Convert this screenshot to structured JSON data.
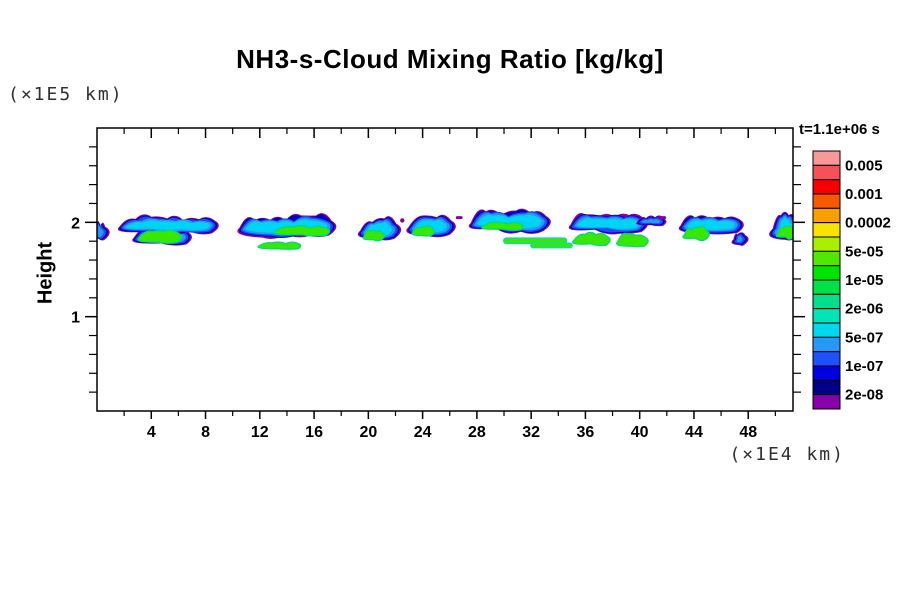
{
  "chart_data": {
    "type": "heatmap",
    "title": "NH3-s-Cloud Mixing Ratio [kg/kg]",
    "time_label": "t=1.1e+06 s",
    "x_axis": {
      "unit_label": "(×1E4 km)",
      "range": [
        0,
        51.3
      ],
      "major_ticks": [
        4,
        8,
        12,
        16,
        20,
        24,
        28,
        32,
        36,
        40,
        44,
        48
      ],
      "minor_tick_step": 2
    },
    "y_axis": {
      "label": "Height",
      "unit_label": "(×1E5 km)",
      "range": [
        0,
        3
      ],
      "major_ticks": [
        1,
        2
      ],
      "minor_tick_step": 0.2
    },
    "legend": {
      "labels": [
        "0.005",
        "0.001",
        "0.0002",
        "5e-05",
        "1e-05",
        "2e-06",
        "5e-07",
        "1e-07",
        "2e-08"
      ],
      "colors": [
        "#F89898",
        "#F85058",
        "#F80000",
        "#F85800",
        "#F8A000",
        "#F8E400",
        "#A8F000",
        "#50E800",
        "#00E400",
        "#00E048",
        "#00E08C",
        "#00E4B8",
        "#00D8F0",
        "#2898F8",
        "#2050F8",
        "#0000E0",
        "#000088",
        "#8800A8"
      ]
    },
    "palette": {
      "outline": "#8800A0",
      "dark": "#0000C0",
      "body": "#1850F0",
      "light": "#2898F8",
      "core": "#00D4F4",
      "green": "#38E800",
      "green_rim": "#00DC78"
    },
    "clouds": [
      {
        "kind": "blob",
        "x": [
          -0.4,
          0.6
        ],
        "y": [
          1.79,
          2.01
        ]
      },
      {
        "kind": "blob",
        "x": [
          2.7,
          6.7
        ],
        "y": [
          1.74,
          1.95
        ]
      },
      {
        "kind": "blob",
        "x": [
          1.65,
          8.7
        ],
        "y": [
          1.86,
          2.07
        ]
      },
      {
        "kind": "green",
        "x": [
          3.1,
          6.0
        ],
        "y": [
          1.77,
          1.92
        ]
      },
      {
        "kind": "blob",
        "x": [
          10.5,
          17.3
        ],
        "y": [
          1.83,
          2.08
        ]
      },
      {
        "kind": "green",
        "x": [
          13.1,
          17.0
        ],
        "y": [
          1.85,
          1.96
        ]
      },
      {
        "kind": "green",
        "x": [
          11.9,
          14.9
        ],
        "y": [
          1.71,
          1.79
        ]
      },
      {
        "kind": "blob",
        "x": [
          19.4,
          22.05
        ],
        "y": [
          1.8,
          2.05
        ]
      },
      {
        "kind": "green",
        "x": [
          19.7,
          21.0
        ],
        "y": [
          1.8,
          1.92
        ]
      },
      {
        "kind": "dot",
        "x": 22.5,
        "y": 2.02
      },
      {
        "kind": "blob",
        "x": [
          22.95,
          26.1
        ],
        "y": [
          1.84,
          2.08
        ]
      },
      {
        "kind": "green",
        "x": [
          23.3,
          24.7
        ],
        "y": [
          1.85,
          1.96
        ]
      },
      {
        "kind": "dash",
        "x": [
          26.45,
          26.95
        ],
        "y": 2.05
      },
      {
        "kind": "blob",
        "x": [
          27.55,
          33.1
        ],
        "y": [
          1.88,
          2.13
        ]
      },
      {
        "kind": "green",
        "x": [
          28.4,
          31.3
        ],
        "y": [
          1.91,
          2.0
        ]
      },
      {
        "kind": "streak",
        "x": [
          30.0,
          34.6
        ],
        "y": 1.805,
        "h": 0.05
      },
      {
        "kind": "streak",
        "x": [
          32.0,
          35.0
        ],
        "y": 1.755,
        "h": 0.04
      },
      {
        "kind": "blob",
        "x": [
          34.9,
          40.3
        ],
        "y": [
          1.87,
          2.1
        ]
      },
      {
        "kind": "blob",
        "x": [
          39.8,
          41.8
        ],
        "y": [
          1.95,
          2.07
        ]
      },
      {
        "kind": "green",
        "x": [
          35.15,
          37.6
        ],
        "y": [
          1.74,
          1.89
        ]
      },
      {
        "kind": "green",
        "x": [
          38.4,
          40.4
        ],
        "y": [
          1.73,
          1.88
        ]
      },
      {
        "kind": "dash",
        "x": [
          41.35,
          41.95
        ],
        "y": 2.05
      },
      {
        "kind": "blob",
        "x": [
          43.0,
          47.35
        ],
        "y": [
          1.86,
          2.09
        ]
      },
      {
        "kind": "blob",
        "x": [
          46.9,
          47.8
        ],
        "y": [
          1.75,
          1.9
        ]
      },
      {
        "kind": "green",
        "x": [
          43.3,
          44.9
        ],
        "y": [
          1.8,
          1.95
        ]
      },
      {
        "kind": "blob",
        "x": [
          49.8,
          51.6
        ],
        "y": [
          1.8,
          2.09
        ]
      },
      {
        "kind": "green",
        "x": [
          50.2,
          51.3
        ],
        "y": [
          1.82,
          1.96
        ]
      }
    ]
  }
}
